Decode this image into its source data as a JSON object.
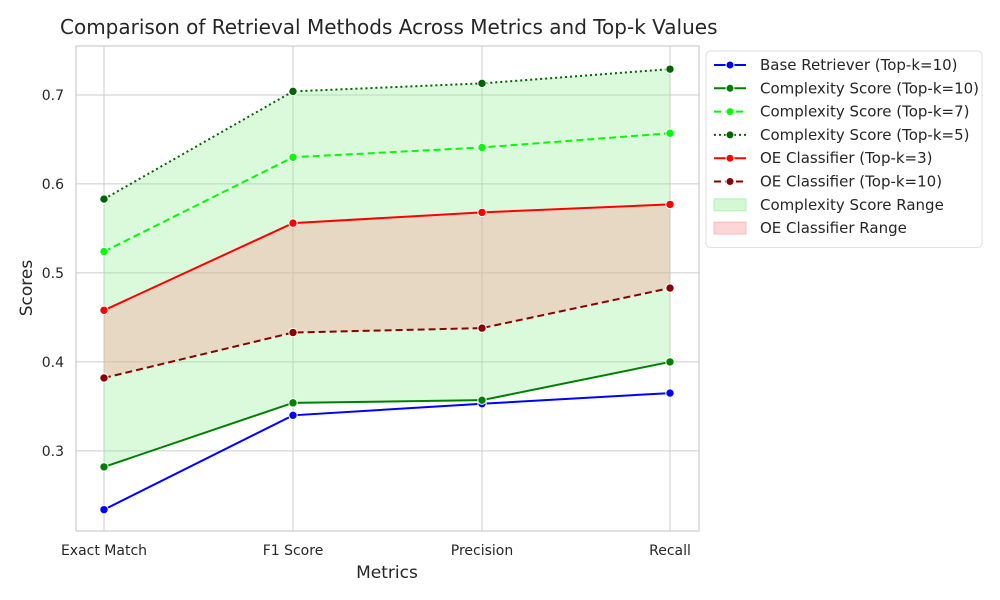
{
  "chart_data": {
    "type": "line",
    "title": "Comparison of Retrieval Methods Across Metrics and Top-k Values",
    "xlabel": "Metrics",
    "ylabel": "Scores",
    "categories": [
      "Exact Match",
      "F1 Score",
      "Precision",
      "Recall"
    ],
    "ylim": [
      0.21,
      0.755
    ],
    "yticks": [
      "0.3",
      "0.4",
      "0.5",
      "0.6",
      "0.7"
    ],
    "grid": true,
    "legend_position": "outside-right-top",
    "series": [
      {
        "name": "Base Retriever (Top-k=10)",
        "color": "#0000ff",
        "dash": "solid",
        "values": [
          0.234,
          0.34,
          0.353,
          0.365
        ]
      },
      {
        "name": "Complexity Score (Top-k=10)",
        "color": "#008000",
        "dash": "solid",
        "values": [
          0.282,
          0.354,
          0.357,
          0.4
        ]
      },
      {
        "name": "Complexity Score (Top-k=7)",
        "color": "#00ff00",
        "dash": "dashed",
        "values": [
          0.524,
          0.63,
          0.641,
          0.657
        ]
      },
      {
        "name": "Complexity Score (Top-k=5)",
        "color": "#006400",
        "dash": "dotted",
        "values": [
          0.583,
          0.704,
          0.713,
          0.729
        ]
      },
      {
        "name": "OE Classifier (Top-k=3)",
        "color": "#ff0000",
        "dash": "solid",
        "values": [
          0.458,
          0.556,
          0.568,
          0.577
        ]
      },
      {
        "name": "OE Classifier (Top-k=10)",
        "color": "#8b0000",
        "dash": "dashed",
        "values": [
          0.382,
          0.433,
          0.438,
          0.483
        ]
      }
    ],
    "ranges": [
      {
        "name": "Complexity Score Range",
        "color": "#90ee90",
        "opacity": 0.32,
        "lower_series": 1,
        "upper_series": 3
      },
      {
        "name": "OE Classifier Range",
        "color": "#ff9999",
        "opacity": 0.35,
        "lower_series": 5,
        "upper_series": 4
      }
    ]
  }
}
